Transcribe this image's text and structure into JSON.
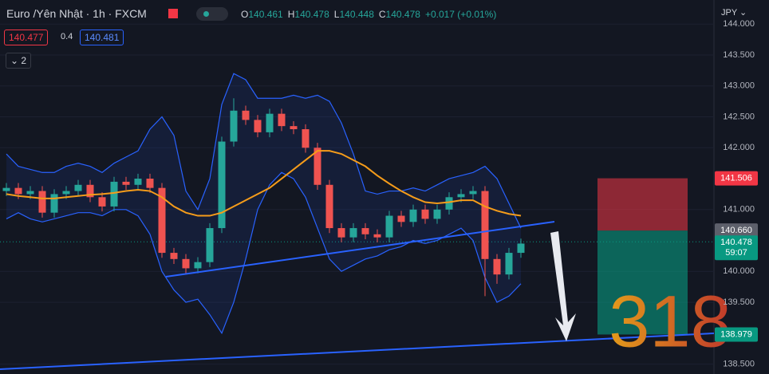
{
  "header": {
    "symbol": "Euro /Yên Nhật · 1h · FXCM",
    "ohlc": [
      {
        "key": "O",
        "value": "140.461"
      },
      {
        "key": "H",
        "value": "140.478"
      },
      {
        "key": "L",
        "value": "140.448"
      },
      {
        "key": "C",
        "value": "140.478"
      }
    ],
    "change": "+0.017 (+0.01%)",
    "bid": "140.477",
    "spread": "0.4",
    "ask": "140.481",
    "indicators": "2",
    "currency": "JPY"
  },
  "overlay_text": "318",
  "chart_data": {
    "type": "candlestick",
    "ylim": [
      138.34,
      144.39
    ],
    "yticks": [
      {
        "value": 144,
        "label": "144.000"
      },
      {
        "value": 143.5,
        "label": "143.500"
      },
      {
        "value": 143,
        "label": "143.000"
      },
      {
        "value": 142.5,
        "label": "142.500"
      },
      {
        "value": 142,
        "label": "142.000"
      },
      {
        "value": 141,
        "label": "141.000"
      },
      {
        "value": 140,
        "label": "140.000"
      },
      {
        "value": 139.5,
        "label": "139.500"
      },
      {
        "value": 138.5,
        "label": "138.500"
      }
    ],
    "grid": true,
    "up_color": "#26a69a",
    "down_color": "#ef5350",
    "open": [
      141.3,
      141.35,
      141.25,
      141.3,
      140.95,
      141.25,
      141.3,
      141.4,
      141.2,
      141.05,
      141.45,
      141.4,
      141.5,
      141.35,
      140.3,
      140.2,
      140.05,
      140.15,
      140.7,
      142.1,
      142.6,
      142.45,
      142.25,
      142.55,
      142.35,
      142.3,
      142.0,
      141.4,
      140.7,
      140.55,
      140.7,
      140.6,
      140.55,
      140.9,
      140.8,
      141.0,
      140.85,
      141.0,
      141.2,
      141.25,
      141.3,
      140.2,
      139.95,
      140.3
    ],
    "high": [
      141.43,
      141.43,
      141.38,
      141.38,
      141.33,
      141.38,
      141.48,
      141.48,
      141.28,
      141.53,
      141.53,
      141.58,
      141.58,
      141.43,
      140.38,
      140.28,
      140.23,
      140.78,
      142.18,
      142.8,
      142.68,
      142.53,
      142.63,
      142.63,
      142.43,
      142.38,
      142.08,
      141.48,
      140.78,
      140.78,
      140.78,
      140.68,
      140.98,
      140.98,
      141.08,
      141.08,
      141.08,
      141.28,
      141.33,
      141.38,
      141.38,
      140.28,
      140.38,
      140.53
    ],
    "low": [
      141.22,
      141.17,
      141.17,
      140.87,
      140.87,
      141.17,
      141.22,
      141.12,
      140.97,
      140.97,
      141.32,
      141.32,
      141.27,
      140.22,
      140.12,
      139.97,
      139.97,
      140.07,
      140.62,
      142.02,
      142.37,
      142.17,
      142.17,
      142.27,
      142.22,
      141.92,
      141.32,
      140.62,
      140.47,
      140.47,
      140.52,
      140.47,
      140.47,
      140.72,
      140.72,
      140.77,
      140.77,
      140.92,
      141.12,
      141.17,
      139.6,
      139.8,
      139.87,
      140.22
    ],
    "close": [
      141.35,
      141.25,
      141.3,
      140.95,
      141.25,
      141.3,
      141.4,
      141.2,
      141.05,
      141.45,
      141.4,
      141.5,
      141.35,
      140.3,
      140.2,
      140.05,
      140.15,
      140.7,
      142.1,
      142.6,
      142.45,
      142.25,
      142.55,
      142.35,
      142.3,
      142.0,
      141.4,
      140.7,
      140.55,
      140.7,
      140.6,
      140.55,
      140.9,
      140.8,
      141.0,
      140.85,
      141.0,
      141.2,
      141.25,
      141.3,
      140.2,
      139.95,
      140.3,
      140.45
    ],
    "ma": {
      "color": "#f59c1a",
      "values": [
        141.25,
        141.22,
        141.2,
        141.18,
        141.18,
        141.2,
        141.22,
        141.24,
        141.25,
        141.27,
        141.3,
        141.32,
        141.3,
        141.2,
        141.05,
        140.95,
        140.9,
        140.9,
        140.95,
        141.05,
        141.15,
        141.25,
        141.35,
        141.5,
        141.65,
        141.8,
        141.95,
        141.95,
        141.9,
        141.8,
        141.7,
        141.55,
        141.42,
        141.3,
        141.2,
        141.12,
        141.1,
        141.12,
        141.15,
        141.15,
        141.05,
        140.98,
        140.93,
        140.9
      ]
    },
    "bb_upper": {
      "color": "#2962ff",
      "values": [
        141.9,
        141.7,
        141.65,
        141.6,
        141.6,
        141.7,
        141.75,
        141.7,
        141.6,
        141.75,
        141.85,
        141.95,
        142.3,
        142.5,
        142.2,
        141.3,
        141.0,
        141.5,
        142.7,
        143.2,
        143.1,
        142.8,
        142.8,
        142.8,
        142.85,
        142.8,
        142.85,
        142.75,
        142.4,
        141.9,
        141.3,
        141.25,
        141.3,
        141.3,
        141.35,
        141.3,
        141.4,
        141.5,
        141.55,
        141.6,
        141.7,
        141.5,
        141.1,
        140.7
      ]
    },
    "bb_lower": {
      "color": "#2962ff",
      "values": [
        140.85,
        140.95,
        140.85,
        140.8,
        140.85,
        140.9,
        140.95,
        140.95,
        140.9,
        141.0,
        141.0,
        140.9,
        140.6,
        140.0,
        139.7,
        139.5,
        139.55,
        139.3,
        139.0,
        139.5,
        140.2,
        141.0,
        141.4,
        141.6,
        141.5,
        141.2,
        140.7,
        140.2,
        140.0,
        140.1,
        140.2,
        140.25,
        140.35,
        140.4,
        140.5,
        140.45,
        140.5,
        140.6,
        140.7,
        140.5,
        139.9,
        139.5,
        139.6,
        139.8
      ]
    },
    "position": {
      "stop": {
        "value": 141.506,
        "label": "141.506",
        "color": "#f23645"
      },
      "entry": {
        "value": 140.66,
        "label": "140.660",
        "color": "#5d606b"
      },
      "target": {
        "value": 138.979,
        "label": "138.979",
        "color": "#089981"
      }
    },
    "last_price": {
      "value": 140.478,
      "label": "140.478",
      "countdown": "59:07",
      "color": "#089981"
    }
  }
}
